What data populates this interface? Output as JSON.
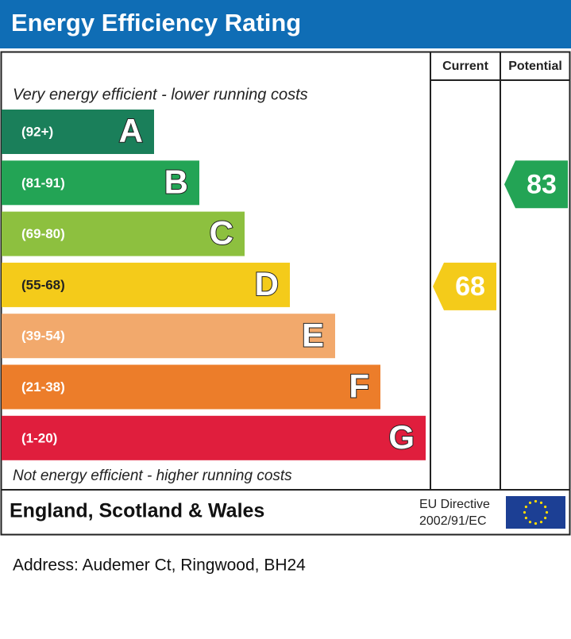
{
  "header": {
    "title": "Energy Efficiency Rating"
  },
  "columns": {
    "current": "Current",
    "potential": "Potential"
  },
  "top_note": "Very energy efficient - lower running costs",
  "bottom_note": "Not energy efficient - higher running costs",
  "bands": [
    {
      "range": "(92+)",
      "letter": "A",
      "color": "#1a7f5a"
    },
    {
      "range": "(81-91)",
      "letter": "B",
      "color": "#23a455"
    },
    {
      "range": "(69-80)",
      "letter": "C",
      "color": "#8dc03f"
    },
    {
      "range": "(55-68)",
      "letter": "D",
      "color": "#f4cb1a"
    },
    {
      "range": "(39-54)",
      "letter": "E",
      "color": "#f2a96c"
    },
    {
      "range": "(21-38)",
      "letter": "F",
      "color": "#ec7d2a"
    },
    {
      "range": "(1-20)",
      "letter": "G",
      "color": "#e01e3d"
    }
  ],
  "current": {
    "value": 68,
    "color": "#f4cb1a"
  },
  "potential": {
    "value": 83,
    "color": "#23a455"
  },
  "footer": {
    "region": "England, Scotland & Wales",
    "directive_line1": "EU Directive",
    "directive_line2": "2002/91/EC"
  },
  "address": "Address: Audemer Ct, Ringwood, BH24"
}
